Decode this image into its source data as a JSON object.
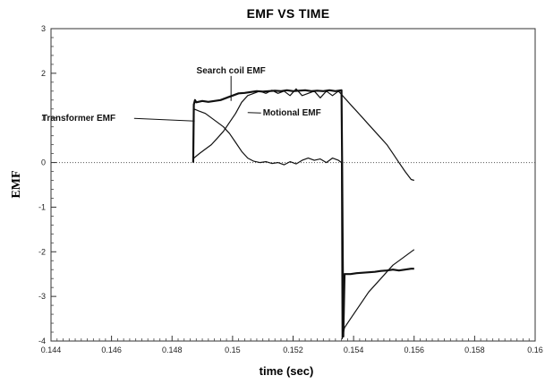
{
  "chart_data": {
    "type": "line",
    "title": "EMF VS TIME",
    "xlabel": "time (sec)",
    "ylabel": "EMF",
    "xlim": [
      0.144,
      0.16
    ],
    "ylim": [
      -4,
      3
    ],
    "xticks": [
      0.144,
      0.146,
      0.148,
      0.15,
      0.152,
      0.154,
      0.156,
      0.158,
      0.16
    ],
    "xtick_labels": [
      "0.144",
      "0.146",
      "0.148",
      "0.15",
      "0.152",
      "0.154",
      "0.156",
      "0.158",
      "0.16"
    ],
    "yticks": [
      -4,
      -3,
      -2,
      -1,
      0,
      1,
      2,
      3
    ],
    "ytick_labels": [
      "-4",
      "-3",
      "-2",
      "-1",
      "0",
      "1",
      "2",
      "3"
    ],
    "grid": false,
    "zero_line": "dotted",
    "series": [
      {
        "name": "Search coil EMF",
        "x": [
          0.1487,
          0.14872,
          0.14876,
          0.1488,
          0.149,
          0.1492,
          0.1494,
          0.1496,
          0.1498,
          0.15,
          0.1502,
          0.1504,
          0.1506,
          0.1508,
          0.151,
          0.1512,
          0.1514,
          0.1516,
          0.1518,
          0.152,
          0.1522,
          0.1524,
          0.1526,
          0.1528,
          0.153,
          0.1532,
          0.1534,
          0.1536,
          0.15362,
          0.15366,
          0.1537,
          0.1539,
          0.1541,
          0.1543,
          0.1545,
          0.1547,
          0.1549,
          0.1551,
          0.1553,
          0.1555,
          0.1557,
          0.1559,
          0.156
        ],
        "y": [
          0.0,
          1.3,
          1.4,
          1.35,
          1.38,
          1.36,
          1.38,
          1.4,
          1.45,
          1.5,
          1.55,
          1.56,
          1.58,
          1.6,
          1.59,
          1.6,
          1.61,
          1.6,
          1.62,
          1.6,
          1.61,
          1.62,
          1.6,
          1.61,
          1.6,
          1.62,
          1.6,
          1.62,
          0.0,
          -3.9,
          -2.5,
          -2.5,
          -2.48,
          -2.47,
          -2.46,
          -2.45,
          -2.43,
          -2.42,
          -2.4,
          -2.42,
          -2.4,
          -2.38,
          -2.38
        ]
      },
      {
        "name": "Transformer EMF",
        "x": [
          0.1487,
          0.14872,
          0.1489,
          0.1491,
          0.1493,
          0.1495,
          0.1497,
          0.1499,
          0.1501,
          0.1503,
          0.1505,
          0.1507,
          0.1509,
          0.1511,
          0.1513,
          0.1515,
          0.1517,
          0.1519,
          0.1521,
          0.1523,
          0.1525,
          0.1527,
          0.1529,
          0.1531,
          0.1533,
          0.1535,
          0.1536,
          0.15362,
          0.1537,
          0.1539,
          0.1541,
          0.1543,
          0.1545,
          0.1547,
          0.1549,
          0.1551,
          0.1553,
          0.1555,
          0.1557,
          0.1559,
          0.156
        ],
        "y": [
          0.0,
          1.2,
          1.15,
          1.1,
          1.0,
          0.9,
          0.8,
          0.65,
          0.45,
          0.25,
          0.1,
          0.03,
          0.0,
          0.02,
          -0.02,
          0.0,
          -0.05,
          0.02,
          -0.03,
          0.05,
          0.1,
          0.05,
          0.08,
          0.0,
          0.1,
          0.05,
          0.0,
          -3.95,
          -3.7,
          -3.5,
          -3.3,
          -3.1,
          -2.9,
          -2.75,
          -2.6,
          -2.45,
          -2.3,
          -2.2,
          -2.1,
          -2.0,
          -1.95
        ]
      },
      {
        "name": "Motional EMF",
        "x": [
          0.1487,
          0.14872,
          0.1489,
          0.1491,
          0.1493,
          0.1495,
          0.1497,
          0.1499,
          0.1501,
          0.1503,
          0.1505,
          0.1507,
          0.1509,
          0.1511,
          0.1513,
          0.1515,
          0.1517,
          0.1519,
          0.1521,
          0.1523,
          0.1525,
          0.1527,
          0.1529,
          0.1531,
          0.1533,
          0.1535,
          0.1537,
          0.1539,
          0.1541,
          0.1543,
          0.1545,
          0.1547,
          0.1549,
          0.1551,
          0.1553,
          0.1555,
          0.1557,
          0.1559,
          0.156
        ],
        "y": [
          0.0,
          0.1,
          0.2,
          0.3,
          0.4,
          0.55,
          0.7,
          0.9,
          1.1,
          1.35,
          1.5,
          1.55,
          1.6,
          1.55,
          1.62,
          1.55,
          1.6,
          1.5,
          1.65,
          1.5,
          1.55,
          1.6,
          1.45,
          1.6,
          1.5,
          1.6,
          1.45,
          1.3,
          1.15,
          1.0,
          0.85,
          0.7,
          0.55,
          0.4,
          0.2,
          0.0,
          -0.2,
          -0.38,
          -0.4
        ]
      }
    ],
    "annotations": [
      {
        "text": "Search coil EMF",
        "x": 0.14995,
        "y": 2.0,
        "arrow_to": [
          0.14995,
          1.38
        ]
      },
      {
        "text": "Transformer EMF",
        "x": 0.1437,
        "y": 0.93,
        "arrow_to": [
          0.14875,
          0.93
        ]
      },
      {
        "text": "Motional EMF",
        "x": 0.151,
        "y": 1.05,
        "arrow_to": [
          0.1505,
          1.12
        ]
      }
    ]
  }
}
